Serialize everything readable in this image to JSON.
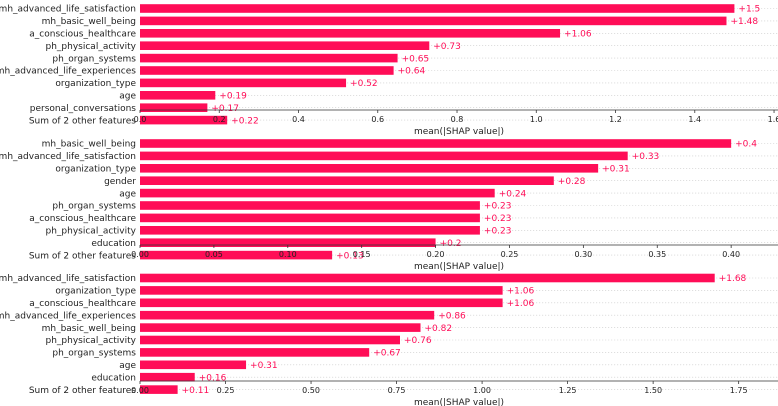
{
  "chart_data": [
    {
      "type": "bar",
      "orientation": "horizontal",
      "categories": [
        "mh_advanced_life_satisfaction",
        "mh_basic_well_being",
        "a_conscious_healthcare",
        "ph_physical_activity",
        "ph_organ_systems",
        "mh_advanced_life_experiences",
        "organization_type",
        "age",
        "personal_conversations",
        "Sum of 2 other features"
      ],
      "values": [
        1.5,
        1.48,
        1.06,
        0.73,
        0.65,
        0.64,
        0.52,
        0.19,
        0.17,
        0.22
      ],
      "value_labels": [
        "+1.5",
        "+1.48",
        "+1.06",
        "+0.73",
        "+0.65",
        "+0.64",
        "+0.52",
        "+0.19",
        "+0.17",
        "+0.22"
      ],
      "xticks": [
        "0.0",
        "0.2",
        "0.4",
        "0.6",
        "0.8",
        "1.0",
        "1.2",
        "1.4",
        "1.6"
      ],
      "xtick_values": [
        0,
        0.2,
        0.4,
        0.6,
        0.8,
        1.0,
        1.2,
        1.4,
        1.6
      ],
      "xlim": [
        0,
        1.61
      ],
      "xlabel": "mean(|SHAP value|)",
      "color": "#ff0d57"
    },
    {
      "type": "bar",
      "orientation": "horizontal",
      "categories": [
        "mh_basic_well_being",
        "mh_advanced_life_satisfaction",
        "organization_type",
        "gender",
        "age",
        "ph_organ_systems",
        "a_conscious_healthcare",
        "ph_physical_activity",
        "education",
        "Sum of 2 other features"
      ],
      "values": [
        0.4,
        0.33,
        0.31,
        0.28,
        0.24,
        0.23,
        0.23,
        0.23,
        0.2,
        0.13
      ],
      "value_labels": [
        "+0.4",
        "+0.33",
        "+0.31",
        "+0.28",
        "+0.24",
        "+0.23",
        "+0.23",
        "+0.23",
        "+0.2",
        "+0.13"
      ],
      "xticks": [
        "0.00",
        "0.05",
        "0.10",
        "0.15",
        "0.20",
        "0.25",
        "0.30",
        "0.35",
        "0.40"
      ],
      "xtick_values": [
        0,
        0.05,
        0.1,
        0.15,
        0.2,
        0.25,
        0.3,
        0.35,
        0.4
      ],
      "xlim": [
        0,
        0.4317
      ],
      "xlabel": "mean(|SHAP value|)",
      "color": "#ff0d57"
    },
    {
      "type": "bar",
      "orientation": "horizontal",
      "categories": [
        "mh_advanced_life_satisfaction",
        "organization_type",
        "a_conscious_healthcare",
        "mh_advanced_life_experiences",
        "mh_basic_well_being",
        "ph_physical_activity",
        "ph_organ_systems",
        "age",
        "education",
        "Sum of 2 other features"
      ],
      "values": [
        1.68,
        1.06,
        1.06,
        0.86,
        0.82,
        0.76,
        0.67,
        0.31,
        0.16,
        0.11
      ],
      "value_labels": [
        "+1.68",
        "+1.06",
        "+1.06",
        "+0.86",
        "+0.82",
        "+0.76",
        "+0.67",
        "+0.31",
        "+0.16",
        "+0.11"
      ],
      "xticks": [
        "0.00",
        "0.25",
        "0.50",
        "0.75",
        "1.00",
        "1.25",
        "1.50",
        "1.75"
      ],
      "xtick_values": [
        0,
        0.25,
        0.5,
        0.75,
        1.0,
        1.25,
        1.5,
        1.75
      ],
      "xlim": [
        0,
        1.865
      ],
      "xlabel": "mean(|SHAP value|)",
      "color": "#ff0d57"
    }
  ]
}
